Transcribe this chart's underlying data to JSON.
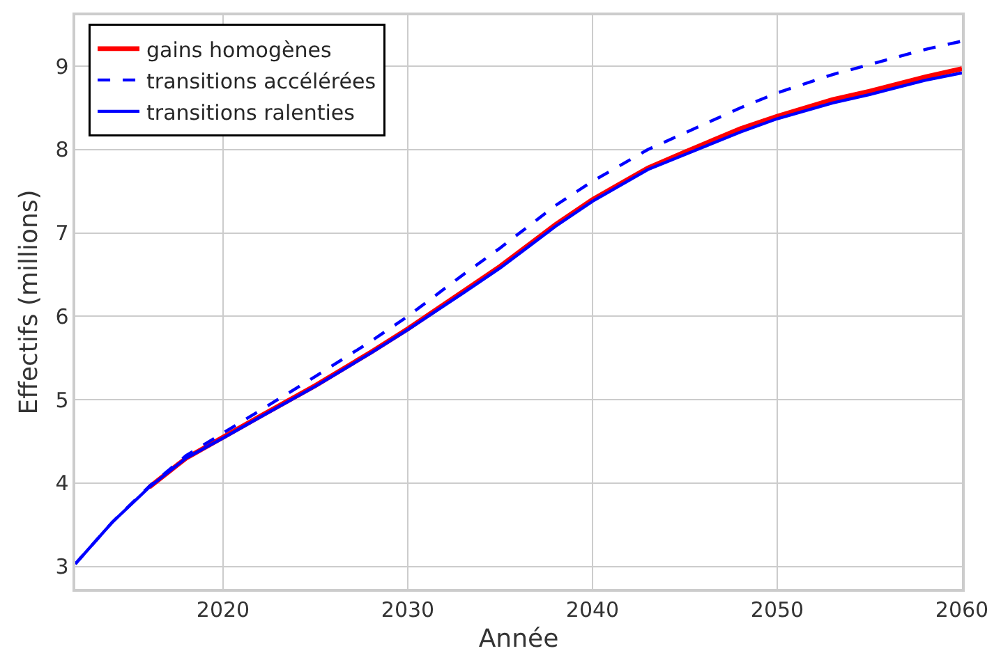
{
  "chart_data": {
    "type": "line",
    "xlabel": "Année",
    "ylabel": "Effectifs (millions)",
    "x": [
      2012,
      2014,
      2016,
      2018,
      2020,
      2022,
      2025,
      2028,
      2030,
      2033,
      2035,
      2038,
      2040,
      2043,
      2045,
      2048,
      2050,
      2053,
      2055,
      2058,
      2060
    ],
    "series": [
      {
        "name": "gains homogènes",
        "color": "#ff0000",
        "line_style": "solid",
        "values": [
          null,
          null,
          3.95,
          4.3,
          4.55,
          4.8,
          5.17,
          5.57,
          5.85,
          6.3,
          6.6,
          7.1,
          7.4,
          7.78,
          7.97,
          8.25,
          8.4,
          8.6,
          8.7,
          8.87,
          8.97
        ]
      },
      {
        "name": "transitions accélérées",
        "color": "#0000ff",
        "line_style": "dashed",
        "values": [
          3.03,
          3.53,
          3.96,
          4.33,
          4.6,
          4.87,
          5.28,
          5.7,
          6.0,
          6.5,
          6.82,
          7.33,
          7.62,
          8.0,
          8.2,
          8.5,
          8.68,
          8.9,
          9.02,
          9.2,
          9.3
        ]
      },
      {
        "name": "transitions ralenties",
        "color": "#0000ff",
        "line_style": "solid",
        "values": [
          3.03,
          3.53,
          3.95,
          4.3,
          4.54,
          4.79,
          5.16,
          5.56,
          5.84,
          6.28,
          6.58,
          7.08,
          7.38,
          7.76,
          7.94,
          8.21,
          8.37,
          8.56,
          8.66,
          8.83,
          8.92
        ]
      }
    ],
    "xlim": [
      2012,
      2060
    ],
    "xticks": [
      2020,
      2030,
      2040,
      2050,
      2060
    ],
    "ylim": [
      2.73,
      9.61
    ],
    "yticks": [
      3,
      4,
      5,
      6,
      7,
      8,
      9
    ],
    "grid": true,
    "legend": "top left",
    "marker": "none"
  }
}
